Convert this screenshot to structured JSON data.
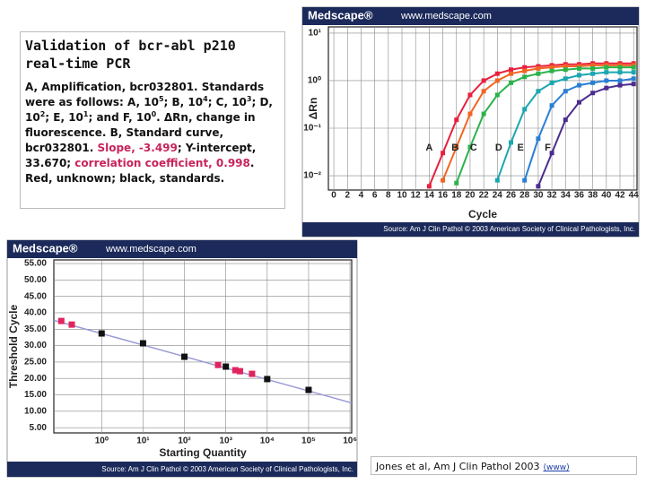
{
  "slide": {
    "title": "Validation of bcr-abl p210 real-time PCR",
    "body": [
      {
        "text": "A, Amplification, bcr032801. Standards were as follows: A, 10",
        "style": "plain"
      },
      {
        "text": "5",
        "style": "sup"
      },
      {
        "text": "; B, 10",
        "style": "plain"
      },
      {
        "text": "4",
        "style": "sup"
      },
      {
        "text": "; C, 10",
        "style": "plain"
      },
      {
        "text": "3",
        "style": "sup"
      },
      {
        "text": "; D, 10",
        "style": "plain"
      },
      {
        "text": "2",
        "style": "sup"
      },
      {
        "text": "; E, 10",
        "style": "plain"
      },
      {
        "text": "1",
        "style": "sup"
      },
      {
        "text": "; and F, 10",
        "style": "plain"
      },
      {
        "text": "0",
        "style": "sup"
      },
      {
        "text": ". ΔRn, change in fluorescence. B, Standard curve, bcr032801. ",
        "style": "plain"
      },
      {
        "text": "Slope, -3.499",
        "style": "red"
      },
      {
        "text": "; Y-intercept, 33.670; ",
        "style": "plain"
      },
      {
        "text": "correlation coefficient, 0.998",
        "style": "red"
      },
      {
        "text": ". Red, unknown; black, standards.",
        "style": "plain"
      }
    ],
    "citation": "Jones et al, Am J Clin Pathol 2003",
    "link": "(www)"
  },
  "chart_data": [
    {
      "type": "line",
      "header_left": "Medscape®",
      "header_right": "www.medscape.com",
      "source": "Source: Am J Clin Pathol © 2003 American Society of Clinical Pathologists, Inc.",
      "x_label": "Cycle",
      "y_label": "ΔRn",
      "x": [
        12,
        14,
        16,
        18,
        20,
        22,
        24,
        26,
        28,
        30,
        32,
        34,
        36,
        38,
        40,
        42,
        44
      ],
      "series": [
        {
          "color": "#e8203c",
          "values": [
            null,
            0.006,
            0.03,
            0.15,
            0.5,
            1.0,
            1.4,
            1.7,
            1.9,
            2.0,
            2.1,
            2.2,
            2.2,
            2.3,
            2.3,
            2.3,
            2.3
          ]
        },
        {
          "color": "#f26522",
          "values": [
            null,
            null,
            0.008,
            0.04,
            0.2,
            0.6,
            1.0,
            1.4,
            1.6,
            1.8,
            1.9,
            2.0,
            2.0,
            2.1,
            2.1,
            2.1,
            2.1
          ]
        },
        {
          "color": "#2bb34a",
          "values": [
            null,
            null,
            null,
            0.007,
            0.04,
            0.2,
            0.5,
            0.9,
            1.2,
            1.4,
            1.6,
            1.7,
            1.8,
            1.8,
            1.9,
            1.9,
            1.9
          ]
        },
        {
          "color": "#1aa7b0",
          "values": [
            null,
            null,
            null,
            null,
            null,
            null,
            0.008,
            0.05,
            0.25,
            0.6,
            0.9,
            1.1,
            1.3,
            1.4,
            1.5,
            1.5,
            1.5
          ]
        },
        {
          "color": "#2a7fd4",
          "values": [
            null,
            null,
            null,
            null,
            null,
            null,
            null,
            null,
            0.008,
            0.06,
            0.3,
            0.6,
            0.8,
            0.9,
            1.0,
            1.0,
            1.1
          ]
        },
        {
          "color": "#4b2c8f",
          "values": [
            null,
            null,
            null,
            null,
            null,
            null,
            null,
            null,
            null,
            0.006,
            0.03,
            0.15,
            0.35,
            0.55,
            0.7,
            0.8,
            0.85
          ]
        }
      ],
      "annotations": [
        {
          "text": "A",
          "x": 14,
          "y": 0.038
        },
        {
          "text": "B",
          "x": 17.8,
          "y": 0.038
        },
        {
          "text": "C",
          "x": 20.5,
          "y": 0.038
        },
        {
          "text": "D",
          "x": 24.2,
          "y": 0.038
        },
        {
          "text": "E",
          "x": 27.4,
          "y": 0.038
        },
        {
          "text": "F",
          "x": 31.4,
          "y": 0.038
        }
      ],
      "xlim": [
        -0.8,
        44.5
      ],
      "xticks": [
        0,
        2,
        4,
        6,
        8,
        10,
        12,
        14,
        16,
        18,
        20,
        22,
        24,
        26,
        28,
        30,
        32,
        34,
        36,
        38,
        40,
        42,
        44
      ],
      "ylim": [
        0.005,
        13.5
      ],
      "ylog": true,
      "yticks": [
        {
          "value": 10,
          "label": "10¹"
        },
        {
          "value": 1,
          "label": "10⁰"
        },
        {
          "value": 0.1,
          "label": "10⁻¹"
        },
        {
          "value": 0.01,
          "label": "10⁻²"
        }
      ],
      "grid": true
    },
    {
      "type": "scatter",
      "header_left": "Medscape®",
      "header_right": "www.medscape.com",
      "source": "Source: Am J Clin Pathol © 2003 American Society of Clinical Pathologists, Inc.",
      "x_label": "Starting Quantity",
      "y_label": "Threshold Cycle",
      "series": [
        {
          "color": "#e0245e",
          "x": [
            0.106,
            0.19,
            650,
            1700,
            2200,
            4300
          ],
          "values": [
            37.5,
            36.4,
            24.1,
            22.5,
            22.2,
            21.4
          ]
        },
        {
          "color": "#111111",
          "x": [
            1,
            10,
            100,
            1000,
            10000,
            100000
          ],
          "values": [
            33.7,
            30.7,
            26.6,
            23.6,
            19.8,
            16.5
          ]
        }
      ],
      "trendline": {
        "slope": -3.499,
        "intercept": 33.67,
        "color": "#9a9ad6"
      },
      "xlog": true,
      "xlim": [
        0.07,
        1100000
      ],
      "xticks": [
        {
          "value": 1,
          "label": "10⁰"
        },
        {
          "value": 10,
          "label": "10¹"
        },
        {
          "value": 100,
          "label": "10²"
        },
        {
          "value": 1000,
          "label": "10³"
        },
        {
          "value": 10000,
          "label": "10⁴"
        },
        {
          "value": 100000,
          "label": "10⁵"
        },
        {
          "value": 1000000,
          "label": "10⁶"
        }
      ],
      "ylim": [
        3.4,
        56.1
      ],
      "yticks": [
        {
          "value": 55,
          "label": "55.00"
        },
        {
          "value": 50,
          "label": "50.00"
        },
        {
          "value": 45,
          "label": "45.00"
        },
        {
          "value": 40,
          "label": "40.00"
        },
        {
          "value": 35,
          "label": "35.00"
        },
        {
          "value": 30,
          "label": "30.00"
        },
        {
          "value": 25,
          "label": "25.00"
        },
        {
          "value": 20,
          "label": "20.00"
        },
        {
          "value": 15,
          "label": "15.00"
        },
        {
          "value": 10,
          "label": "10.00"
        },
        {
          "value": 5,
          "label": "5.00"
        }
      ],
      "grid": true
    }
  ]
}
